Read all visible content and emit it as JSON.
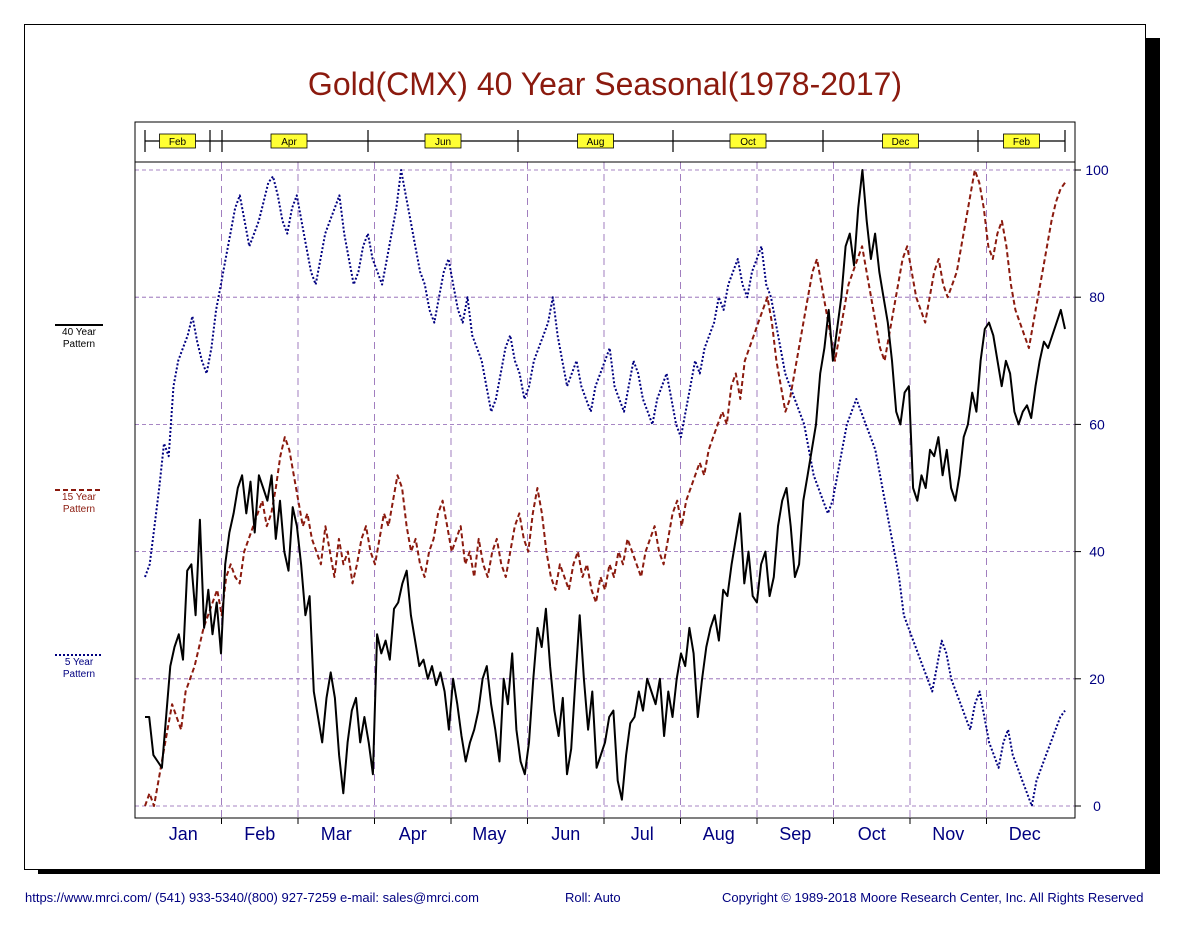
{
  "colors": {
    "title": "#8b1a0e",
    "forty_year": "#000000",
    "fifteen_year": "#8b1a0e",
    "five_year": "#000080",
    "axis_text": "#000080",
    "grid": "#8a5fb0",
    "band_label_bg": "#ffff33"
  },
  "footer": {
    "left": "https://www.mrci.com/   (541) 933-5340/(800) 927-7259   e-mail: sales@mrci.com",
    "roll": "Roll: Auto",
    "right": "Copyright © 1989-2018 Moore Research Center, Inc. All Rights Reserved"
  },
  "chart_data": {
    "type": "line",
    "title": "Gold(CMX) 40 Year Seasonal(1978-2017)",
    "xlabel": "",
    "ylabel": "",
    "ylim": [
      0,
      100
    ],
    "yticks": [
      0,
      20,
      40,
      60,
      80,
      100
    ],
    "x_month_labels": [
      "Jan",
      "Feb",
      "Mar",
      "Apr",
      "May",
      "Jun",
      "Jul",
      "Aug",
      "Sep",
      "Oct",
      "Nov",
      "Dec"
    ],
    "contract_band": [
      "Feb",
      "Apr",
      "Jun",
      "Aug",
      "Oct",
      "Dec",
      "Feb"
    ],
    "grid": true,
    "legend": [
      {
        "line1": "40 Year",
        "line2": "Pattern",
        "style": "solid"
      },
      {
        "line1": "15 Year",
        "line2": "Pattern",
        "style": "dashed"
      },
      {
        "line1": "5 Year",
        "line2": "Pattern",
        "style": "dotted"
      }
    ],
    "series": [
      {
        "style": "solid",
        "values": [
          14,
          14,
          8,
          7,
          6,
          14,
          22,
          25,
          27,
          23,
          37,
          38,
          30,
          45,
          28,
          34,
          27,
          32,
          24,
          38,
          43,
          46,
          50,
          52,
          46,
          51,
          43,
          52,
          50,
          48,
          52,
          42,
          48,
          40,
          37,
          47,
          44,
          38,
          30,
          33,
          18,
          14,
          10,
          17,
          21,
          17,
          8,
          2,
          10,
          15,
          17,
          10,
          14,
          10,
          5,
          27,
          24,
          26,
          23,
          31,
          32,
          35,
          37,
          30,
          26,
          22,
          23,
          20,
          22,
          19,
          21,
          18,
          12,
          20,
          16,
          11,
          7,
          10,
          12,
          15,
          20,
          22,
          16,
          12,
          7,
          20,
          16,
          24,
          12,
          7,
          5,
          10,
          20,
          28,
          25,
          31,
          22,
          15,
          11,
          17,
          5,
          9,
          20,
          30,
          20,
          12,
          18,
          6,
          8,
          10,
          14,
          15,
          4,
          1,
          8,
          13,
          14,
          18,
          15,
          20,
          18,
          16,
          20,
          11,
          18,
          14,
          20,
          24,
          22,
          28,
          24,
          14,
          20,
          25,
          28,
          30,
          26,
          34,
          33,
          38,
          42,
          46,
          35,
          40,
          33,
          32,
          38,
          40,
          33,
          36,
          44,
          48,
          50,
          44,
          36,
          38,
          48,
          52,
          56,
          60,
          68,
          72,
          78,
          70,
          75,
          80,
          88,
          90,
          85,
          94,
          100,
          92,
          86,
          90,
          84,
          80,
          76,
          70,
          62,
          60,
          65,
          66,
          50,
          48,
          52,
          50,
          56,
          55,
          58,
          52,
          56,
          50,
          48,
          52,
          58,
          60,
          65,
          62,
          70,
          75,
          76,
          74,
          70,
          66,
          70,
          68,
          62,
          60,
          62,
          63,
          61,
          66,
          70,
          73,
          72,
          74,
          76,
          78,
          75
        ]
      },
      {
        "style": "dashed",
        "values": [
          0,
          2,
          0,
          4,
          8,
          12,
          16,
          14,
          12,
          18,
          20,
          22,
          25,
          28,
          30,
          32,
          34,
          30,
          36,
          38,
          36,
          35,
          40,
          42,
          44,
          46,
          48,
          44,
          46,
          50,
          55,
          58,
          56,
          52,
          48,
          44,
          46,
          42,
          40,
          38,
          44,
          40,
          36,
          42,
          38,
          40,
          35,
          38,
          42,
          44,
          40,
          38,
          42,
          46,
          44,
          48,
          52,
          50,
          44,
          40,
          42,
          38,
          36,
          40,
          42,
          46,
          48,
          44,
          40,
          42,
          44,
          38,
          40,
          36,
          42,
          38,
          36,
          40,
          42,
          38,
          36,
          40,
          44,
          46,
          42,
          40,
          46,
          50,
          46,
          40,
          36,
          34,
          38,
          36,
          34,
          38,
          40,
          36,
          38,
          34,
          32,
          36,
          34,
          38,
          36,
          40,
          38,
          42,
          40,
          38,
          36,
          40,
          42,
          44,
          40,
          38,
          42,
          46,
          48,
          44,
          48,
          50,
          52,
          54,
          52,
          56,
          58,
          60,
          62,
          60,
          66,
          68,
          64,
          70,
          72,
          74,
          76,
          78,
          80,
          76,
          70,
          66,
          62,
          64,
          68,
          72,
          76,
          80,
          84,
          86,
          82,
          78,
          74,
          70,
          74,
          78,
          82,
          84,
          86,
          88,
          84,
          80,
          76,
          72,
          70,
          74,
          78,
          82,
          86,
          88,
          84,
          80,
          78,
          76,
          80,
          84,
          86,
          82,
          80,
          82,
          84,
          88,
          92,
          96,
          100,
          98,
          94,
          88,
          86,
          90,
          92,
          88,
          82,
          78,
          76,
          74,
          72,
          76,
          80,
          84,
          88,
          92,
          95,
          97,
          98
        ]
      },
      {
        "style": "dotted",
        "values": [
          36,
          38,
          44,
          50,
          57,
          55,
          66,
          70,
          72,
          74,
          77,
          73,
          70,
          68,
          72,
          78,
          82,
          86,
          90,
          94,
          96,
          92,
          88,
          90,
          92,
          95,
          98,
          99,
          96,
          92,
          90,
          94,
          96,
          92,
          88,
          84,
          82,
          86,
          90,
          92,
          94,
          96,
          90,
          86,
          82,
          84,
          88,
          90,
          86,
          84,
          82,
          86,
          90,
          94,
          100,
          96,
          92,
          88,
          84,
          82,
          78,
          76,
          80,
          84,
          86,
          82,
          78,
          76,
          80,
          74,
          72,
          70,
          66,
          62,
          64,
          68,
          72,
          74,
          70,
          68,
          64,
          66,
          70,
          72,
          74,
          76,
          80,
          74,
          70,
          66,
          68,
          70,
          66,
          64,
          62,
          66,
          68,
          70,
          72,
          66,
          64,
          62,
          66,
          70,
          68,
          64,
          62,
          60,
          64,
          66,
          68,
          64,
          60,
          58,
          62,
          66,
          70,
          68,
          72,
          74,
          76,
          80,
          78,
          82,
          84,
          86,
          82,
          80,
          84,
          86,
          88,
          82,
          80,
          76,
          72,
          68,
          66,
          64,
          62,
          60,
          56,
          52,
          50,
          48,
          46,
          48,
          52,
          56,
          60,
          62,
          64,
          62,
          60,
          58,
          56,
          52,
          48,
          44,
          40,
          36,
          30,
          28,
          26,
          24,
          22,
          20,
          18,
          22,
          26,
          24,
          20,
          18,
          16,
          14,
          12,
          16,
          18,
          14,
          10,
          8,
          6,
          10,
          12,
          8,
          6,
          4,
          2,
          0,
          4,
          6,
          8,
          10,
          12,
          14,
          15
        ]
      }
    ]
  }
}
